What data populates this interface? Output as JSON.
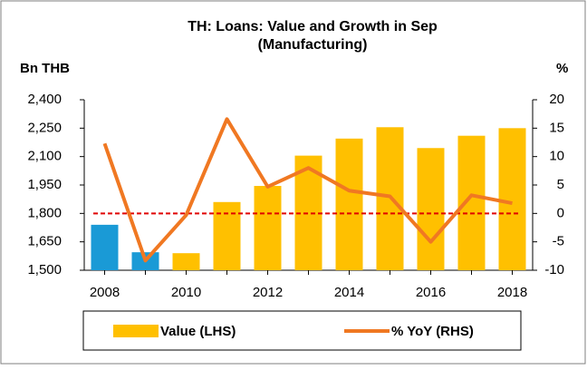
{
  "chart_data": {
    "type": "bar-line",
    "title": "TH: Loans: Value and Growth in Sep",
    "subtitle": "(Manufacturing)",
    "y_label": "Bn THB",
    "y2_label": "%",
    "categories": [
      "2008",
      null,
      "2010",
      null,
      "2012",
      null,
      "2014",
      null,
      "2016",
      null,
      "2018"
    ],
    "series": [
      {
        "name": "Value (LHS)",
        "type": "bar",
        "color": "#ffc000",
        "colors": [
          "#1a9ad6",
          "#1a9ad6",
          "#ffc000",
          "#ffc000",
          "#ffc000",
          "#ffc000",
          "#ffc000",
          "#ffc000",
          "#ffc000",
          "#ffc000",
          "#ffc000"
        ],
        "values": [
          1740,
          1595,
          1590,
          1860,
          1945,
          2105,
          2195,
          2255,
          2145,
          2210,
          2250
        ]
      },
      {
        "name": "% YoY (RHS)",
        "type": "line",
        "axis": "y2",
        "color": "#f07822",
        "values": [
          12.3,
          -8.3,
          -0.3,
          16.6,
          4.7,
          8.0,
          4.0,
          3.0,
          -5.0,
          3.2,
          1.8
        ]
      }
    ],
    "ylim": [
      1500,
      2400
    ],
    "yticks": [
      {
        "value": 1500,
        "label": "1,500"
      },
      {
        "value": 1650,
        "label": "1,650"
      },
      {
        "value": 1800,
        "label": "1,800"
      },
      {
        "value": 1950,
        "label": "1,950"
      },
      {
        "value": 2100,
        "label": "2,100"
      },
      {
        "value": 2250,
        "label": "2,250"
      },
      {
        "value": 2400,
        "label": "2,400"
      }
    ],
    "y2lim": [
      -10,
      20
    ],
    "y2ticks": [
      -10,
      -5,
      0,
      5,
      10,
      15,
      20
    ],
    "reference_line": {
      "value": 0,
      "axis": "y2",
      "color": "#e00000"
    },
    "legend": "bottom"
  }
}
